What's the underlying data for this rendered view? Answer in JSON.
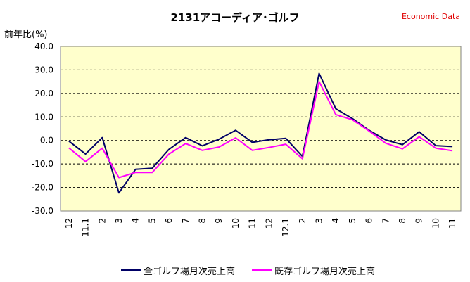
{
  "header": {
    "title": "2131アコーディア･ゴルフ",
    "brand": "Economic Data",
    "y_unit_label": "前年比(%)"
  },
  "colors": {
    "plot_bg": "#ffffcc",
    "series_1": "#000066",
    "series_2": "#ff00ff",
    "grid": "#000000",
    "brand": "#e00000"
  },
  "chart_data": {
    "type": "line",
    "title": "2131アコーディア･ゴルフ",
    "ylabel": "前年比(%)",
    "xlabel": "",
    "ylim": [
      -30,
      40
    ],
    "yticks": [
      40,
      30,
      20,
      10,
      0,
      -10,
      -20,
      -30
    ],
    "ytick_labels": [
      "40.0",
      "30.0",
      "20.0",
      "10.0",
      "0.0",
      "-10.0",
      "-20.0",
      "-30.0"
    ],
    "grid": "horizontal-dashed",
    "legend_position": "bottom",
    "categories": [
      "12",
      "11.1",
      "2",
      "3",
      "4",
      "5",
      "6",
      "7",
      "8",
      "9",
      "10",
      "11",
      "12",
      "12.1",
      "2",
      "3",
      "4",
      "5",
      "6",
      "7",
      "8",
      "9",
      "10",
      "11"
    ],
    "series": [
      {
        "name": "全ゴルフ場月次売上高",
        "color": "#000066",
        "values": [
          -0.3,
          -5.8,
          1.2,
          -22.3,
          -12.3,
          -11.8,
          -3.8,
          1.2,
          -2.3,
          0.5,
          4.3,
          -0.8,
          0.3,
          0.9,
          -6.8,
          28.5,
          13.5,
          9.3,
          4.3,
          0.2,
          -1.8,
          3.7,
          -2.2,
          -2.6
        ]
      },
      {
        "name": "既存ゴルフ場月次売上高",
        "color": "#ff00ff",
        "values": [
          -3.2,
          -9.0,
          -3.3,
          -15.8,
          -13.6,
          -13.6,
          -5.8,
          -1.3,
          -4.2,
          -2.8,
          1.1,
          -4.2,
          -3.0,
          -1.6,
          -7.8,
          25.0,
          11.0,
          8.8,
          4.0,
          -1.2,
          -3.6,
          1.6,
          -3.3,
          -4.4
        ]
      }
    ]
  }
}
